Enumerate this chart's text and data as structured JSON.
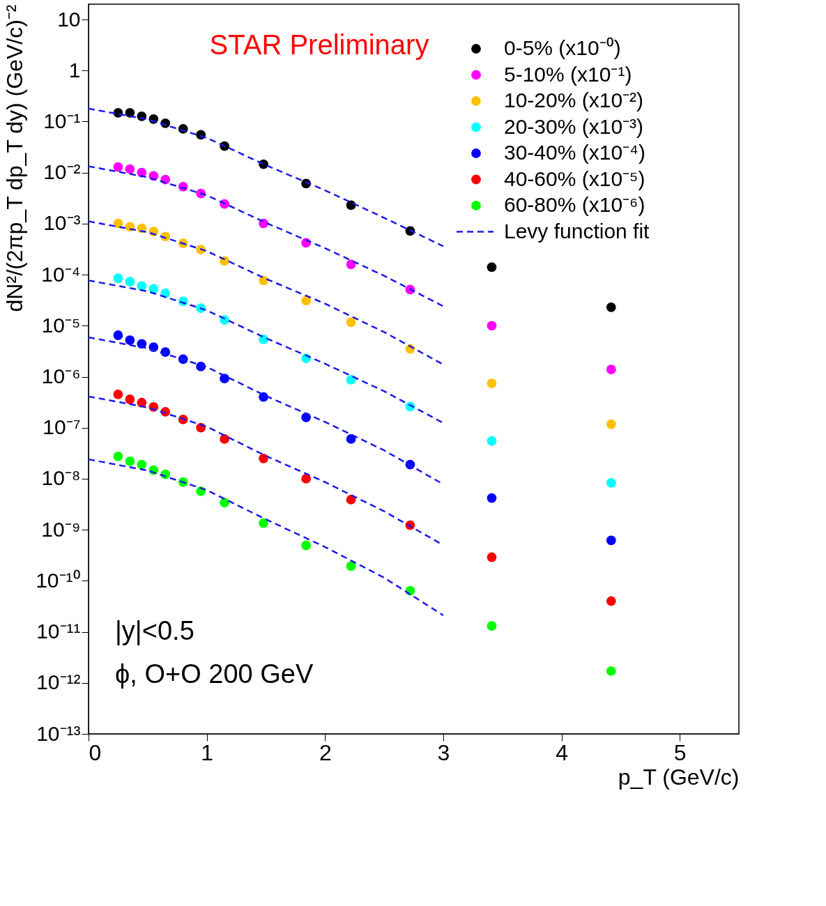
{
  "chart_data": {
    "type": "scatter",
    "xlabel": "p_T (GeV/c)",
    "ylabel": "dN²/(2πp_T dp_T dy) (GeV/c)⁻²",
    "x": [
      0.25,
      0.35,
      0.45,
      0.55,
      0.65,
      0.8,
      0.95,
      1.15,
      1.48,
      1.84,
      2.22,
      2.72,
      3.41,
      4.42
    ],
    "series": [
      {
        "name": "0-5% (x10⁻⁰)",
        "marker": "circle",
        "color": "#000000",
        "values": [
          0.149,
          0.149,
          0.127,
          0.112,
          0.093,
          0.072,
          0.055,
          0.033,
          0.0146,
          0.0061,
          0.0023,
          0.00072,
          0.00014,
          2.3e-05
        ]
      },
      {
        "name": "5-10% (x10⁻¹)",
        "marker": "circle",
        "color": "#ff00ff",
        "values": [
          0.0129,
          0.0117,
          0.01,
          0.0086,
          0.0073,
          0.0053,
          0.0039,
          0.00244,
          0.00101,
          0.00042,
          0.000159,
          5.1e-05,
          1e-05,
          1.39e-06
        ]
      },
      {
        "name": "10-20% (x10⁻²)",
        "marker": "circle",
        "color": "#ffc000",
        "values": [
          0.00101,
          0.00087,
          0.00081,
          0.0007,
          0.00056,
          0.00041,
          0.00031,
          0.000186,
          7.7e-05,
          3.1e-05,
          1.17e-05,
          3.5e-06,
          7.4e-07,
          1.17e-07
        ]
      },
      {
        "name": "20-30% (x10⁻³)",
        "marker": "circle",
        "color": "#00ffff",
        "values": [
          8.5e-05,
          7.3e-05,
          6e-05,
          5.3e-05,
          4.3e-05,
          3e-05,
          2.2e-05,
          1.29e-05,
          5.4e-06,
          2.3e-06,
          8.7e-07,
          2.6e-07,
          5.5e-08,
          8.3e-09
        ]
      },
      {
        "name": "30-40% (x10⁻⁴)",
        "marker": "circle",
        "color": "#0000ff",
        "values": [
          6.5e-06,
          5.2e-06,
          4.4e-06,
          3.8e-06,
          3.05e-06,
          2.2e-06,
          1.58e-06,
          9.2e-07,
          4e-07,
          1.6e-07,
          6e-08,
          1.9e-08,
          4.2e-09,
          6.2e-10
        ]
      },
      {
        "name": "40-60% (x10⁻⁵)",
        "marker": "circle",
        "color": "#ff0000",
        "values": [
          4.5e-07,
          3.6e-07,
          3.1e-07,
          2.55e-07,
          2.05e-07,
          1.45e-07,
          1e-07,
          6e-08,
          2.5e-08,
          1e-08,
          3.9e-09,
          1.23e-09,
          2.9e-10,
          4e-11
        ]
      },
      {
        "name": "60-80% (x10⁻⁶)",
        "marker": "circle",
        "color": "#00ff00",
        "values": [
          2.75e-08,
          2.2e-08,
          1.9e-08,
          1.47e-08,
          1.22e-08,
          8.6e-09,
          5.7e-09,
          3.4e-09,
          1.35e-09,
          4.95e-10,
          1.93e-10,
          6.4e-11,
          1.3e-11,
          1.7e-12
        ]
      },
      {
        "name": "Levy function fit",
        "type": "line",
        "marker": "none",
        "line_style": "dashed",
        "color": "#1a1aee",
        "x": [
          0,
          0.5,
          1,
          1.5,
          2,
          2.5,
          3
        ],
        "values": [
          0.18,
          0.11,
          0.048,
          0.014,
          0.0045,
          0.0013,
          0.00036
        ]
      },
      {
        "type": "line",
        "marker": "none",
        "line_style": "dashed",
        "color": "#1a1aee",
        "x": [
          0,
          0.5,
          1,
          1.5,
          2,
          2.5,
          3
        ],
        "values": [
          0.0133,
          0.0081,
          0.0036,
          0.00104,
          0.00033,
          9.5e-05,
          2.4e-05
        ]
      },
      {
        "type": "line",
        "marker": "none",
        "line_style": "dashed",
        "color": "#1a1aee",
        "x": [
          0,
          0.5,
          1,
          1.5,
          2,
          2.5,
          3
        ],
        "values": [
          0.00111,
          0.00068,
          0.00029,
          8.3e-05,
          2.7e-05,
          7.5e-06,
          1.73e-06
        ]
      },
      {
        "type": "line",
        "marker": "none",
        "line_style": "dashed",
        "color": "#1a1aee",
        "x": [
          0,
          0.5,
          1,
          1.5,
          2,
          2.5,
          3
        ],
        "values": [
          7.7e-05,
          4.7e-05,
          2e-05,
          5.7e-06,
          1.8e-06,
          5.2e-07,
          1.24e-07
        ]
      },
      {
        "type": "line",
        "marker": "none",
        "line_style": "dashed",
        "color": "#1a1aee",
        "x": [
          0,
          0.5,
          1,
          1.5,
          2,
          2.5,
          3
        ],
        "values": [
          5.9e-06,
          3.6e-06,
          1.55e-06,
          4.2e-07,
          1.3e-07,
          3.6e-08,
          7.8e-09
        ]
      },
      {
        "type": "line",
        "marker": "none",
        "line_style": "dashed",
        "color": "#1a1aee",
        "x": [
          0,
          0.5,
          1,
          1.5,
          2,
          2.5,
          3
        ],
        "values": [
          4.1e-07,
          2.5e-07,
          1.05e-07,
          2.8e-08,
          8.6e-09,
          2.3e-09,
          5e-10
        ]
      },
      {
        "type": "line",
        "marker": "none",
        "line_style": "dashed",
        "color": "#1a1aee",
        "x": [
          0,
          0.5,
          1,
          1.5,
          2,
          2.5,
          3
        ],
        "values": [
          2.4e-08,
          1.45e-08,
          6e-09,
          1.6e-09,
          4.6e-10,
          1.15e-10,
          2.1e-11
        ]
      }
    ],
    "log": "y",
    "legend": "top right",
    "grid": false,
    "xlim": [
      0,
      5.5
    ],
    "xticks": [
      0,
      1,
      2,
      3,
      4,
      5
    ],
    "ylim": [
      1e-13,
      20
    ],
    "yticks": [
      {
        "value": 1e-13,
        "label": "10⁻¹³"
      },
      {
        "value": 1e-12,
        "label": "10⁻¹²"
      },
      {
        "value": 1e-11,
        "label": "10⁻¹¹"
      },
      {
        "value": 1e-10,
        "label": "10⁻¹⁰"
      },
      {
        "value": 1e-09,
        "label": "10⁻⁹"
      },
      {
        "value": 1e-08,
        "label": "10⁻⁸"
      },
      {
        "value": 1e-07,
        "label": "10⁻⁷"
      },
      {
        "value": 1e-06,
        "label": "10⁻⁶"
      },
      {
        "value": 1e-05,
        "label": "10⁻⁵"
      },
      {
        "value": 0.0001,
        "label": "10⁻⁴"
      },
      {
        "value": 0.001,
        "label": "10⁻³"
      },
      {
        "value": 0.01,
        "label": "10⁻²"
      },
      {
        "value": 0.1,
        "label": "10⁻¹"
      },
      1,
      10
    ],
    "annotations": [
      "STAR Preliminary",
      "|y|<0.5",
      "ϕ, O+O 200 GeV"
    ]
  }
}
